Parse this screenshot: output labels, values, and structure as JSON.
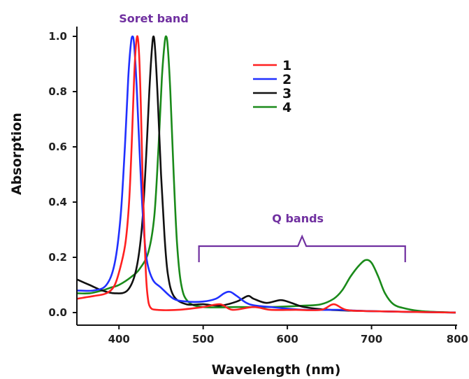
{
  "chart_data": {
    "type": "line",
    "xlabel": "Wavelength (nm)",
    "ylabel": "Absorption",
    "xlim": [
      350,
      800
    ],
    "ylim": [
      0,
      1.0
    ],
    "x_ticks": [
      "400",
      "500",
      "600",
      "700",
      "800"
    ],
    "y_ticks": [
      "0.0",
      "0.2",
      "0.4",
      "0.6",
      "0.8",
      "1.0"
    ],
    "grid": false,
    "legend_position": "top-center",
    "annotations": [
      {
        "text": "Soret band",
        "color": "#7030a0"
      },
      {
        "text": "Q bands",
        "color": "#7030a0",
        "range": [
          495,
          740
        ]
      }
    ],
    "series": [
      {
        "name": "1",
        "color": "#ff2020",
        "points": [
          [
            350,
            0.05
          ],
          [
            370,
            0.06
          ],
          [
            385,
            0.07
          ],
          [
            395,
            0.1
          ],
          [
            403,
            0.18
          ],
          [
            408,
            0.26
          ],
          [
            412,
            0.4
          ],
          [
            415,
            0.6
          ],
          [
            418,
            0.85
          ],
          [
            420,
            0.96
          ],
          [
            422,
            1.0
          ],
          [
            424,
            0.93
          ],
          [
            426,
            0.75
          ],
          [
            428,
            0.5
          ],
          [
            430,
            0.3
          ],
          [
            432,
            0.14
          ],
          [
            434,
            0.06
          ],
          [
            437,
            0.02
          ],
          [
            445,
            0.01
          ],
          [
            470,
            0.01
          ],
          [
            500,
            0.02
          ],
          [
            520,
            0.03
          ],
          [
            535,
            0.01
          ],
          [
            560,
            0.02
          ],
          [
            580,
            0.01
          ],
          [
            610,
            0.01
          ],
          [
            640,
            0.01
          ],
          [
            655,
            0.03
          ],
          [
            670,
            0.01
          ],
          [
            700,
            0.005
          ],
          [
            800,
            0.0
          ]
        ]
      },
      {
        "name": "2",
        "color": "#2030ff",
        "points": [
          [
            350,
            0.08
          ],
          [
            370,
            0.08
          ],
          [
            385,
            0.1
          ],
          [
            395,
            0.18
          ],
          [
            402,
            0.35
          ],
          [
            407,
            0.6
          ],
          [
            411,
            0.85
          ],
          [
            414,
            0.97
          ],
          [
            416,
            1.0
          ],
          [
            418,
            0.97
          ],
          [
            421,
            0.82
          ],
          [
            425,
            0.55
          ],
          [
            429,
            0.32
          ],
          [
            433,
            0.19
          ],
          [
            440,
            0.12
          ],
          [
            450,
            0.09
          ],
          [
            465,
            0.05
          ],
          [
            480,
            0.04
          ],
          [
            500,
            0.04
          ],
          [
            515,
            0.05
          ],
          [
            525,
            0.07
          ],
          [
            532,
            0.075
          ],
          [
            540,
            0.06
          ],
          [
            555,
            0.03
          ],
          [
            580,
            0.02
          ],
          [
            620,
            0.01
          ],
          [
            660,
            0.01
          ],
          [
            700,
            0.005
          ],
          [
            800,
            0.0
          ]
        ]
      },
      {
        "name": "3",
        "color": "#111111",
        "points": [
          [
            350,
            0.12
          ],
          [
            365,
            0.1
          ],
          [
            380,
            0.08
          ],
          [
            395,
            0.07
          ],
          [
            410,
            0.08
          ],
          [
            420,
            0.15
          ],
          [
            427,
            0.3
          ],
          [
            432,
            0.55
          ],
          [
            436,
            0.8
          ],
          [
            439,
            0.95
          ],
          [
            441,
            1.0
          ],
          [
            443,
            0.95
          ],
          [
            446,
            0.78
          ],
          [
            450,
            0.5
          ],
          [
            454,
            0.28
          ],
          [
            458,
            0.14
          ],
          [
            465,
            0.06
          ],
          [
            480,
            0.03
          ],
          [
            500,
            0.03
          ],
          [
            520,
            0.025
          ],
          [
            540,
            0.04
          ],
          [
            553,
            0.06
          ],
          [
            560,
            0.05
          ],
          [
            575,
            0.035
          ],
          [
            592,
            0.045
          ],
          [
            605,
            0.035
          ],
          [
            620,
            0.02
          ],
          [
            650,
            0.01
          ],
          [
            700,
            0.005
          ],
          [
            800,
            0.0
          ]
        ]
      },
      {
        "name": "4",
        "color": "#1a8a1a",
        "points": [
          [
            350,
            0.07
          ],
          [
            365,
            0.07
          ],
          [
            380,
            0.08
          ],
          [
            390,
            0.09
          ],
          [
            400,
            0.1
          ],
          [
            415,
            0.13
          ],
          [
            425,
            0.16
          ],
          [
            435,
            0.22
          ],
          [
            442,
            0.35
          ],
          [
            447,
            0.6
          ],
          [
            451,
            0.85
          ],
          [
            454,
            0.97
          ],
          [
            456,
            1.0
          ],
          [
            458,
            0.96
          ],
          [
            461,
            0.8
          ],
          [
            465,
            0.5
          ],
          [
            469,
            0.25
          ],
          [
            474,
            0.1
          ],
          [
            482,
            0.04
          ],
          [
            500,
            0.02
          ],
          [
            540,
            0.02
          ],
          [
            580,
            0.02
          ],
          [
            620,
            0.025
          ],
          [
            640,
            0.03
          ],
          [
            655,
            0.05
          ],
          [
            665,
            0.08
          ],
          [
            675,
            0.13
          ],
          [
            685,
            0.17
          ],
          [
            693,
            0.19
          ],
          [
            700,
            0.18
          ],
          [
            708,
            0.13
          ],
          [
            716,
            0.07
          ],
          [
            726,
            0.03
          ],
          [
            740,
            0.015
          ],
          [
            760,
            0.005
          ],
          [
            800,
            0.0
          ]
        ]
      }
    ]
  }
}
